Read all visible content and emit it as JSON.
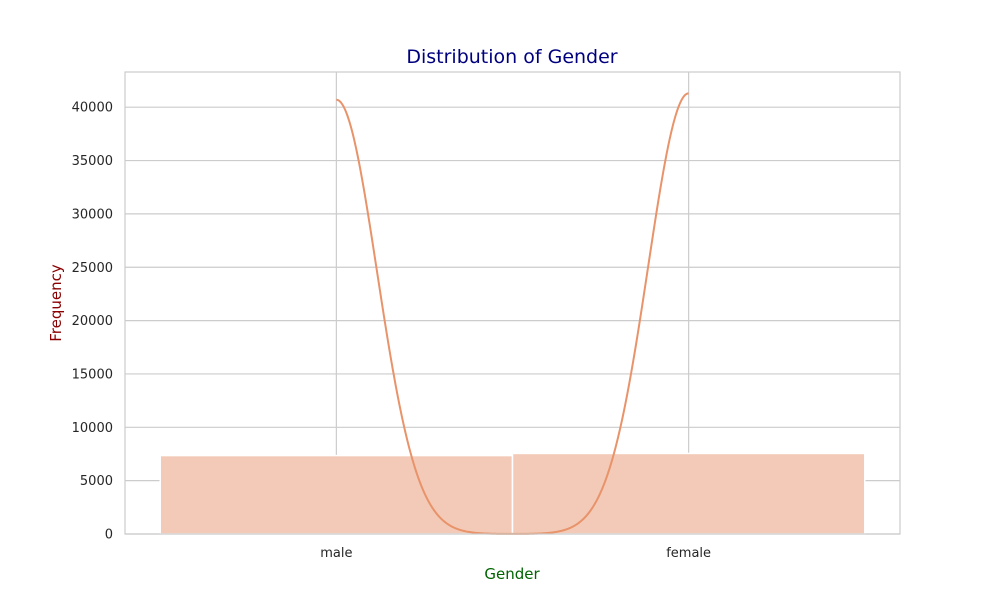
{
  "chart_data": {
    "type": "bar",
    "title": "Distribution of Gender",
    "xlabel": "Gender",
    "ylabel": "Frequency",
    "categories": [
      "male",
      "female"
    ],
    "values": [
      7350,
      7550
    ],
    "ylim": [
      0,
      43300
    ],
    "yticks": [
      0,
      5000,
      10000,
      15000,
      20000,
      25000,
      30000,
      35000,
      40000
    ],
    "grid": true,
    "kde": {
      "peaks": [
        40700,
        41300
      ]
    },
    "colors": {
      "bar_fill": "#f3cab7",
      "kde_line": "#e8936a",
      "title": "#00007f",
      "xlabel": "#006400",
      "ylabel": "#8b0000",
      "grid": "#cccccc",
      "frame": "#cccccc",
      "text": "#262626"
    }
  }
}
